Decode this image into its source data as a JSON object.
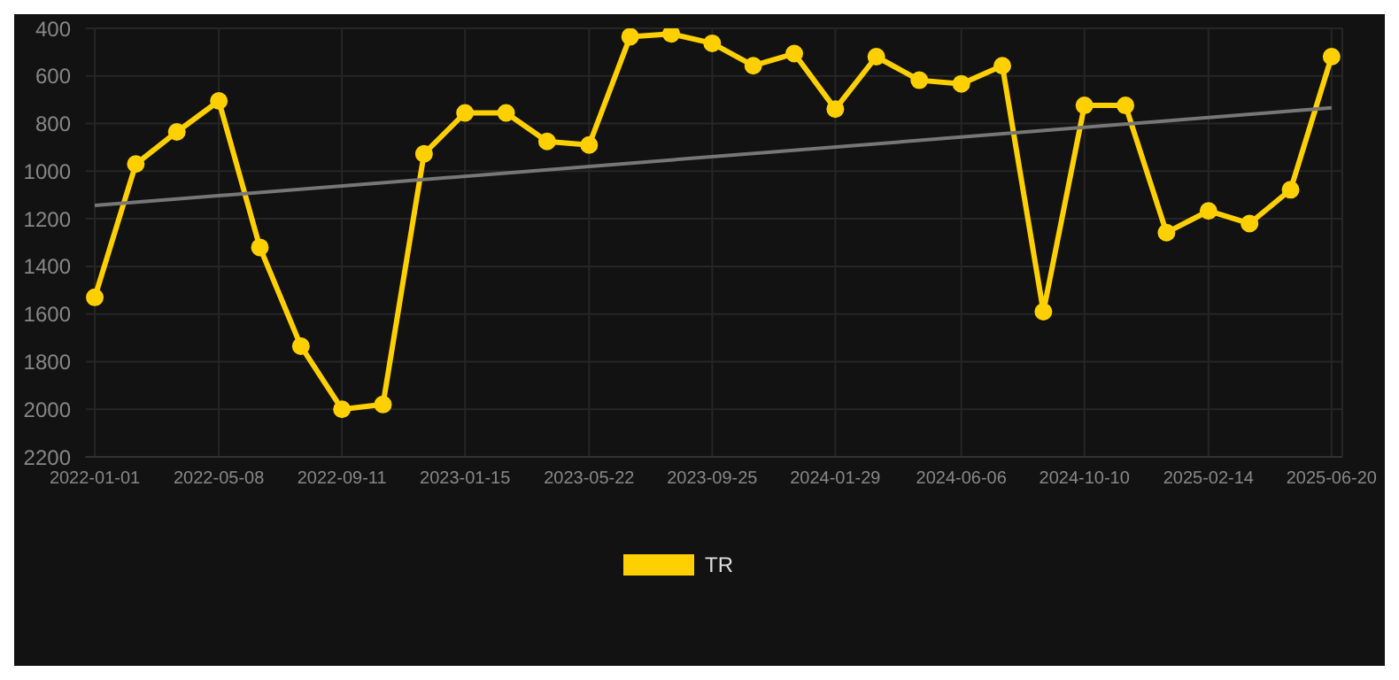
{
  "chart_data": {
    "type": "line",
    "x": [
      "2022-01-01",
      "2022-02-12",
      "2022-03-26",
      "2022-05-08",
      "2022-06-19",
      "2022-07-31",
      "2022-09-11",
      "2022-10-23",
      "2022-12-04",
      "2023-01-15",
      "2023-02-26",
      "2023-04-09",
      "2023-05-22",
      "2023-07-03",
      "2023-08-14",
      "2023-09-25",
      "2023-11-06",
      "2023-12-18",
      "2024-01-29",
      "2024-03-11",
      "2024-04-24",
      "2024-06-06",
      "2024-07-18",
      "2024-08-29",
      "2024-10-10",
      "2024-11-21",
      "2025-01-02",
      "2025-02-14",
      "2025-03-28",
      "2025-05-09",
      "2025-06-20"
    ],
    "series": [
      {
        "name": "TR",
        "color": "#ffd000",
        "marker": "circle",
        "values": [
          1530,
          970,
          835,
          705,
          1320,
          1735,
          2000,
          1980,
          927,
          755,
          755,
          875,
          890,
          435,
          423,
          463,
          557,
          506,
          739,
          519,
          618,
          633,
          557,
          1590,
          724,
          724,
          1258,
          1167,
          1220,
          1078,
          519
        ]
      },
      {
        "type": "line",
        "color": "#777777",
        "marker": "none",
        "x": [
          "2022-01-01",
          "2025-06-20"
        ],
        "values": [
          1144,
          734
        ]
      }
    ],
    "xlim": [
      "2021-12-22",
      "2025-07-01"
    ],
    "xticks": [
      {
        "value": "2022-01-01",
        "label": "2022-01-01"
      },
      {
        "value": "2022-05-08",
        "label": "2022-05-08"
      },
      {
        "value": "2022-09-11",
        "label": "2022-09-11"
      },
      {
        "value": "2023-01-15",
        "label": "2023-01-15"
      },
      {
        "value": "2023-05-22",
        "label": "2023-05-22"
      },
      {
        "value": "2023-09-25",
        "label": "2023-09-25"
      },
      {
        "value": "2024-01-29",
        "label": "2024-01-29"
      },
      {
        "value": "2024-06-06",
        "label": "2024-06-06"
      },
      {
        "value": "2024-10-10",
        "label": "2024-10-10"
      },
      {
        "value": "2025-02-14",
        "label": "2025-02-14"
      },
      {
        "value": "2025-06-20",
        "label": "2025-06-20"
      }
    ],
    "ylim": [
      2200,
      400
    ],
    "yticks": [
      400,
      600,
      800,
      1000,
      1200,
      1400,
      1600,
      1800,
      2000,
      2200
    ],
    "grid": true,
    "legend": "bottom"
  }
}
